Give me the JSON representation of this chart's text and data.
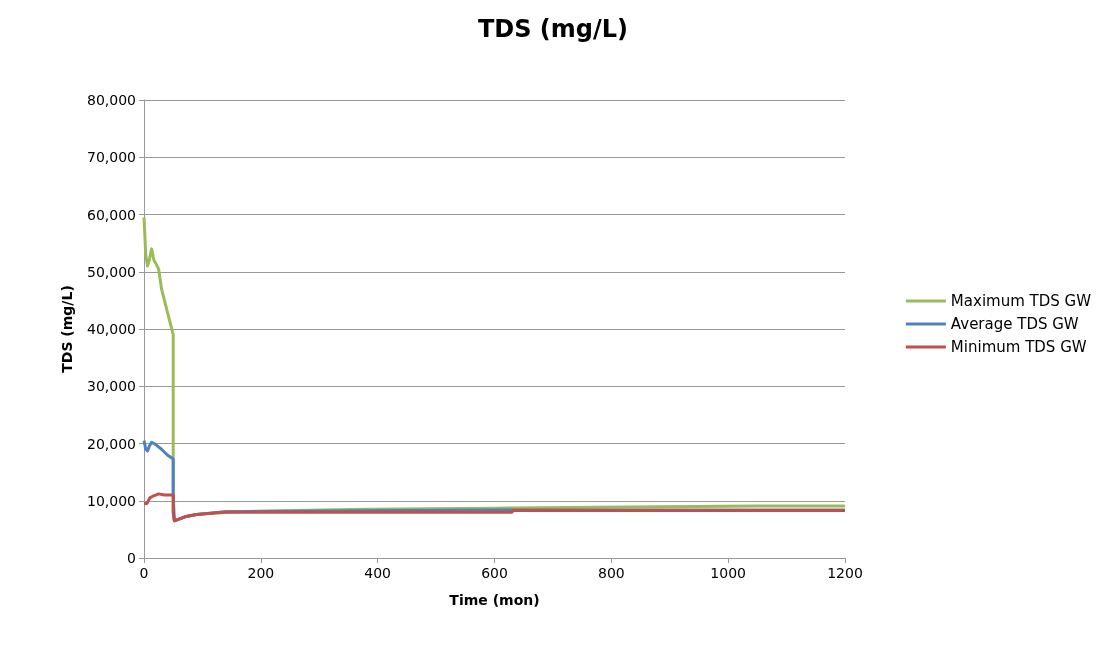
{
  "chart_data": {
    "type": "line",
    "title": "TDS (mg/L)",
    "xlabel": "Time (mon)",
    "ylabel": "TDS (mg/L)",
    "xlim": [
      0,
      1200
    ],
    "xticks": [
      0,
      200,
      400,
      600,
      800,
      1000,
      1200
    ],
    "ylim": [
      0,
      80000
    ],
    "yticks": [
      {
        "value": 0,
        "label": "0"
      },
      {
        "value": 10000,
        "label": "10,000"
      },
      {
        "value": 20000,
        "label": "20,000"
      },
      {
        "value": 30000,
        "label": "30,000"
      },
      {
        "value": 40000,
        "label": "40,000"
      },
      {
        "value": 50000,
        "label": "50,000"
      },
      {
        "value": 60000,
        "label": "60,000"
      },
      {
        "value": 70000,
        "label": "70,000"
      },
      {
        "value": 80000,
        "label": "80,000"
      }
    ],
    "grid": "y",
    "legend": "right",
    "marker": "none",
    "line_style": "solid",
    "series": [
      {
        "name": "Maximum TDS GW",
        "color": "#9bbb59",
        "x": [
          0,
          3,
          6,
          9,
          13,
          17,
          20,
          25,
          30,
          40,
          50,
          50,
          52,
          70,
          90,
          140,
          380,
          600,
          830,
          1050,
          1200
        ],
        "values": [
          59500,
          53000,
          51000,
          52000,
          54000,
          52000,
          51500,
          50500,
          47000,
          43000,
          39000,
          8000,
          6500,
          7200,
          7600,
          8100,
          8500,
          8700,
          8900,
          9100,
          9100
        ]
      },
      {
        "name": "Average TDS GW",
        "color": "#4f81bd",
        "x": [
          0,
          3,
          6,
          9,
          13,
          17,
          20,
          30,
          40,
          50,
          50,
          52,
          70,
          90,
          140,
          440,
          600,
          630,
          1200
        ],
        "values": [
          20500,
          19000,
          18700,
          19500,
          20200,
          20000,
          19800,
          19000,
          18000,
          17300,
          11000,
          6500,
          7200,
          7600,
          8100,
          8300,
          8400,
          8400,
          8400
        ]
      },
      {
        "name": "Minimum TDS GW",
        "color": "#c0504d",
        "x": [
          0,
          5,
          10,
          15,
          20,
          25,
          35,
          50,
          50,
          52,
          70,
          90,
          140,
          630,
          632,
          1200
        ],
        "values": [
          9500,
          9500,
          10500,
          10800,
          11000,
          11200,
          11000,
          11000,
          8000,
          6500,
          7200,
          7600,
          8000,
          8000,
          8300,
          8300
        ]
      }
    ]
  }
}
